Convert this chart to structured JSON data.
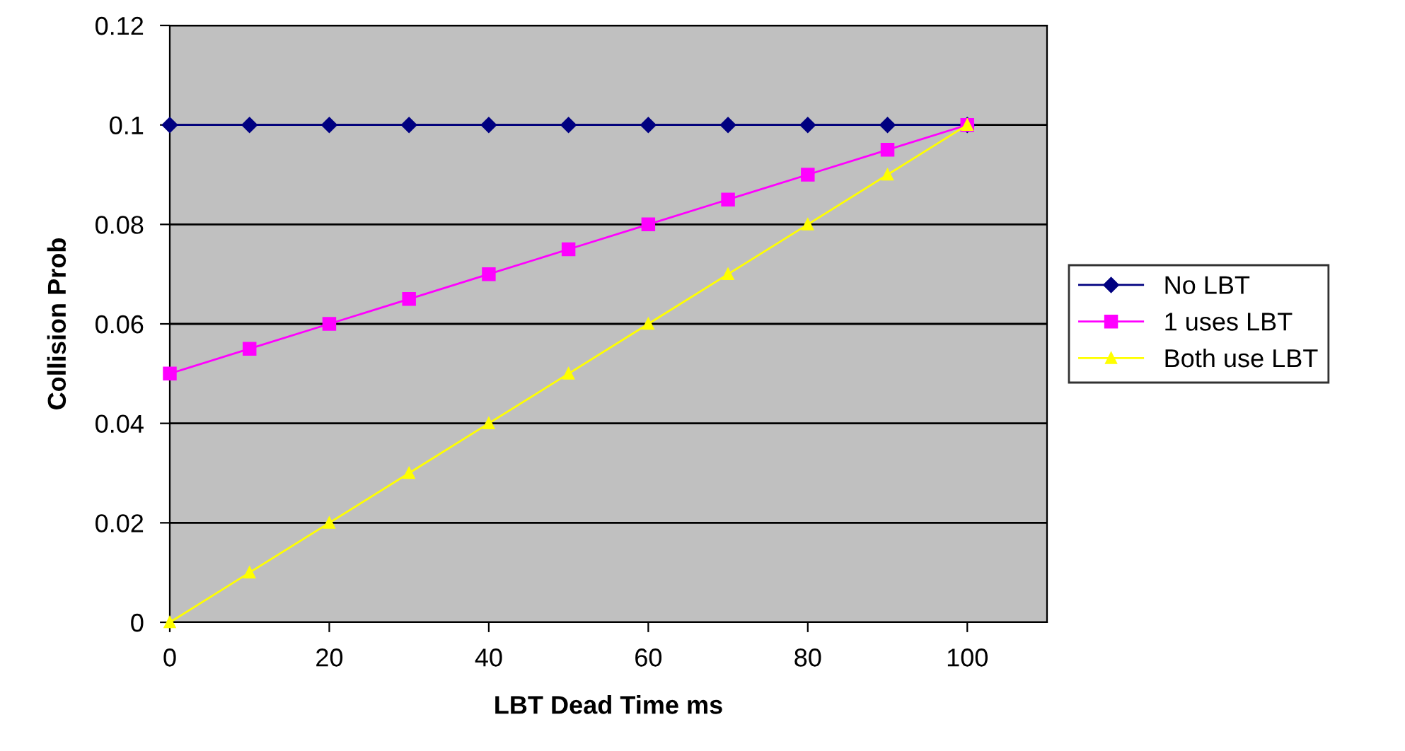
{
  "chart_data": {
    "type": "line",
    "xlabel": "LBT Dead Time ms",
    "ylabel": "Collision Prob",
    "x": [
      0,
      10,
      20,
      30,
      40,
      50,
      60,
      70,
      80,
      90,
      100
    ],
    "series": [
      {
        "name": "No LBT",
        "color": "#000080",
        "marker": "diamond",
        "values": [
          0.1,
          0.1,
          0.1,
          0.1,
          0.1,
          0.1,
          0.1,
          0.1,
          0.1,
          0.1,
          0.1
        ]
      },
      {
        "name": "1 uses LBT",
        "color": "#ff00ff",
        "marker": "square",
        "values": [
          0.05,
          0.055,
          0.06,
          0.065,
          0.07,
          0.075,
          0.08,
          0.085,
          0.09,
          0.095,
          0.1
        ]
      },
      {
        "name": "Both use LBT",
        "color": "#ffff00",
        "marker": "triangle",
        "values": [
          0,
          0.01,
          0.02,
          0.03,
          0.04,
          0.05,
          0.06,
          0.07,
          0.08,
          0.09,
          0.1
        ]
      }
    ],
    "xlim": [
      0,
      110
    ],
    "xticks": [
      0,
      20,
      40,
      60,
      80,
      100
    ],
    "ylim": [
      0,
      0.12
    ],
    "yticks": [
      0,
      0.02,
      0.04,
      0.06,
      0.08,
      0.1,
      0.12
    ],
    "grid": "y",
    "legend": "right",
    "line_style": "solid"
  }
}
